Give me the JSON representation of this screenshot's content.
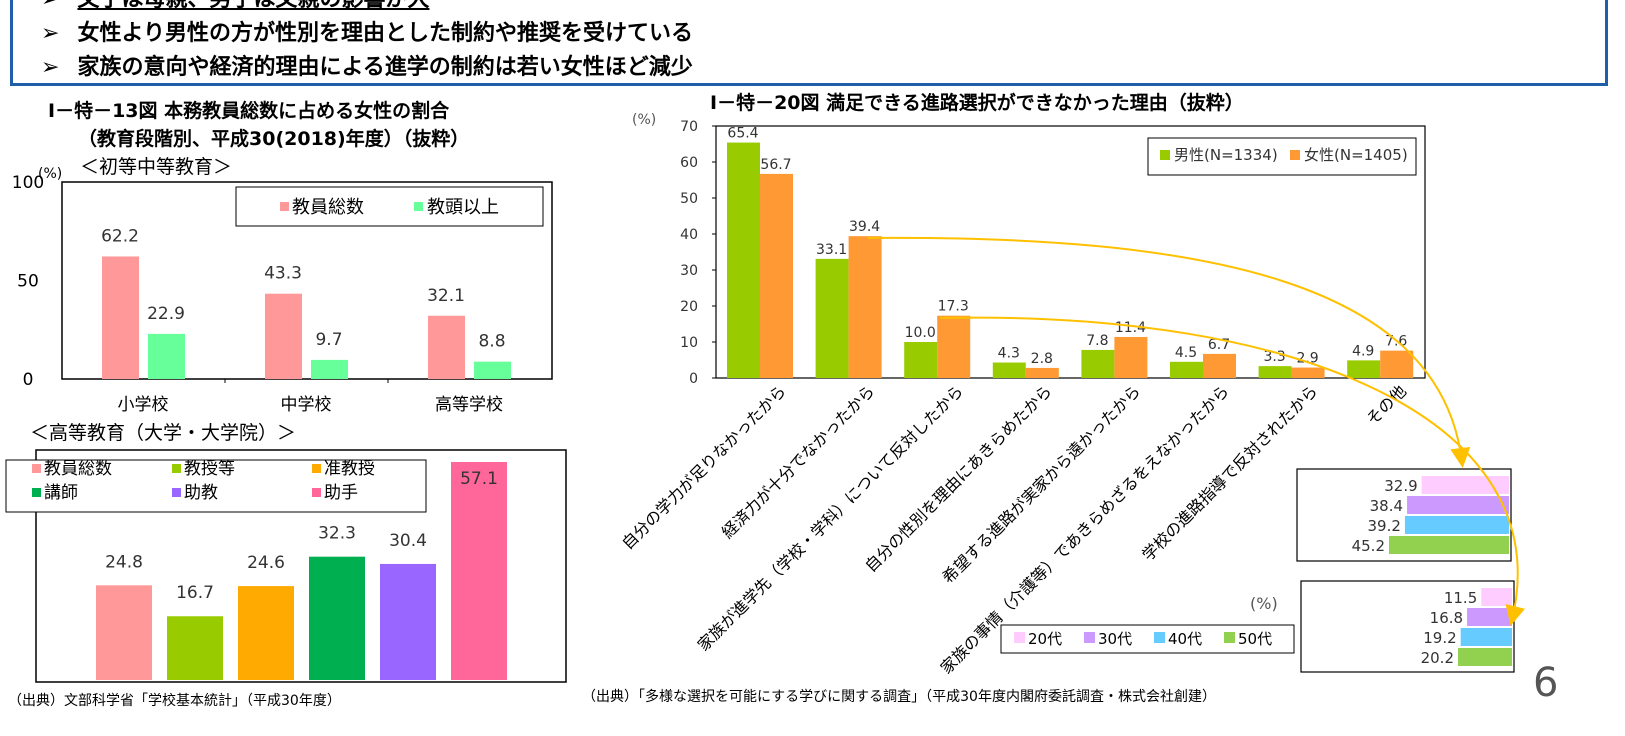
{
  "summary": {
    "bullet_mark": "➢",
    "bullets": [
      "文子は母親、男子は父親の影響が大",
      "女性より男性の方が性別を理由とした制約や推奨を受けている",
      "家族の意向や経済的理由による進学の制約は若い女性ほど減少"
    ]
  },
  "page_number": "6",
  "fig13": {
    "title_line1": "Ⅰ－特－13図  本務教員総数に占める女性の割合",
    "title_line2": "（教育段階別、平成30(2018)年度）（抜粋）",
    "source": "（出典）文部科学省「学校基本統計」（平成30年度）"
  },
  "fig20": {
    "title": "Ⅰ－特－20図  満足できる進路選択ができなかった理由（抜粋）",
    "source": "（出典）「多様な選択を可能にする学びに関する調査」（平成30年度内閣府委託調査・株式会社創建）"
  },
  "colors": {
    "border_blue": "#1f5ea8",
    "pink": "#ff9999",
    "mint": "#66ff99",
    "lime": "#99cc00",
    "orange": "#ff9933",
    "gold": "#ffaa00",
    "green": "#00b050",
    "purple": "#9966ff",
    "hotpink": "#ff6699",
    "age20": "#ffccff",
    "age30": "#cc99ff",
    "age40": "#66ccff",
    "age50": "#92d050",
    "arrow": "#ffc000"
  },
  "chart_data": [
    {
      "id": "primary_secondary",
      "type": "bar",
      "title": "＜初等中等教育＞",
      "ylabel": "(%)",
      "ylim": [
        0,
        100
      ],
      "yticks": [
        "0",
        "50",
        "100"
      ],
      "categories": [
        "小学校",
        "中学校",
        "高等学校"
      ],
      "series": [
        {
          "name": "教員総数",
          "values": [
            62.2,
            43.3,
            32.1
          ],
          "labels": [
            "62.2",
            "43.3",
            "32.1"
          ]
        },
        {
          "name": "教頭以上",
          "values": [
            22.9,
            9.7,
            8.8
          ],
          "labels": [
            "22.9",
            "9.7",
            "8.8"
          ]
        }
      ],
      "legend": "top-right"
    },
    {
      "id": "higher_ed",
      "type": "bar",
      "title": "＜高等教育（大学・大学院）＞",
      "categories": [
        "教員総数",
        "教授等",
        "准教授",
        "講師",
        "助教",
        "助手"
      ],
      "values": [
        24.8,
        16.7,
        24.6,
        32.3,
        30.4,
        57.1
      ],
      "labels": [
        "24.8",
        "16.7",
        "24.6",
        "32.3",
        "30.4",
        "57.1"
      ],
      "ylim": [
        0,
        57.1
      ],
      "legend": "top-left"
    },
    {
      "id": "reasons",
      "type": "bar",
      "ylabel": "(%)",
      "ylim": [
        0,
        70
      ],
      "yticks": [
        "0",
        "10",
        "20",
        "30",
        "40",
        "50",
        "60",
        "70"
      ],
      "categories": [
        "自分の学力が足りなかったから",
        "経済力が十分でなかったから",
        "家族が進学先（学校・学科）について反対したから",
        "自分の性別を理由にあきらめたから",
        "希望する進路が実家から遠かったから",
        "家族の事情（介護等）であきらめざるをえなかったから",
        "学校の進路指導で反対されたから",
        "その他"
      ],
      "series": [
        {
          "name": "男性(N=1334)",
          "values": [
            65.4,
            33.1,
            10.0,
            4.3,
            7.8,
            4.5,
            3.3,
            4.9
          ],
          "labels": [
            "65.4",
            "33.1",
            "10.0",
            "4.3",
            "7.8",
            "4.5",
            "3.3",
            "4.9"
          ]
        },
        {
          "name": "女性(N=1405)",
          "values": [
            56.7,
            39.4,
            17.3,
            2.8,
            11.4,
            6.7,
            2.9,
            7.6
          ],
          "labels": [
            "56.7",
            "39.4",
            "17.3",
            "2.8",
            "11.4",
            "6.7",
            "2.9",
            "7.6"
          ]
        }
      ],
      "legend": "top-right"
    },
    {
      "id": "economic_by_age",
      "type": "bar",
      "orientation": "horizontal",
      "categories": [
        "20代",
        "30代",
        "40代",
        "50代"
      ],
      "values": [
        32.9,
        38.4,
        39.2,
        45.2
      ],
      "labels": [
        "32.9",
        "38.4",
        "39.2",
        "45.2"
      ],
      "xlim": [
        0,
        45.2
      ]
    },
    {
      "id": "family_by_age",
      "type": "bar",
      "orientation": "horizontal",
      "categories": [
        "20代",
        "30代",
        "40代",
        "50代"
      ],
      "values": [
        11.5,
        16.8,
        19.2,
        20.2
      ],
      "labels": [
        "11.5",
        "16.8",
        "19.2",
        "20.2"
      ],
      "xlim": [
        0,
        20.2
      ],
      "unit": "(%)",
      "legend": "bottom-left"
    }
  ]
}
